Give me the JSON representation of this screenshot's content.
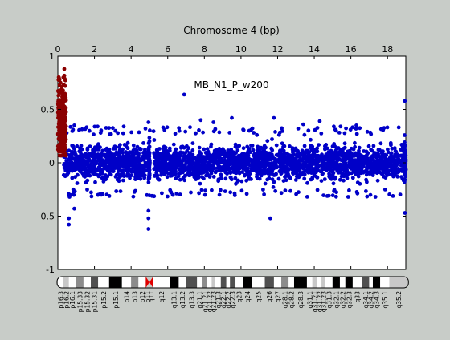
{
  "chart_data": {
    "type": "scatter",
    "title": "Chromosome 4 (bp)",
    "annotation": "MB_N1_P_w200",
    "x_ticks": [
      "0",
      "2",
      "4",
      "6",
      "8",
      "10",
      "12",
      "14",
      "16",
      "18"
    ],
    "x_tick_values": [
      0,
      2,
      4,
      6,
      8,
      10,
      12,
      14,
      16,
      18
    ],
    "xlim": [
      0,
      19
    ],
    "y_ticks": [
      "-1",
      "-0.5",
      "0",
      "0.5",
      "1"
    ],
    "y_tick_values": [
      -1,
      -0.5,
      0,
      0.5,
      1
    ],
    "ylim": [
      -1,
      1
    ],
    "grid": false,
    "series": [
      {
        "color": "#0000c8",
        "description_points": "dense band of log-ratio values around 0 spanning the whole chromosome",
        "band": [
          -0.28,
          0.28
        ],
        "outliers": [
          {
            "x": 0.9,
            "y": -0.43
          },
          {
            "x": 0.6,
            "y": -0.52
          },
          {
            "x": 0.6,
            "y": -0.58
          },
          {
            "x": 0.9,
            "y": 0.35
          },
          {
            "x": 4.95,
            "y": -0.62
          },
          {
            "x": 4.95,
            "y": -0.52
          },
          {
            "x": 4.95,
            "y": -0.45
          },
          {
            "x": 4.95,
            "y": 0.38
          },
          {
            "x": 6.9,
            "y": 0.64
          },
          {
            "x": 7.8,
            "y": 0.4
          },
          {
            "x": 11.6,
            "y": -0.52
          },
          {
            "x": 11.8,
            "y": 0.42
          },
          {
            "x": 9.5,
            "y": 0.42
          },
          {
            "x": 14.3,
            "y": 0.39
          },
          {
            "x": 18.95,
            "y": 0.58
          },
          {
            "x": 18.95,
            "y": -0.47
          },
          {
            "x": 8.5,
            "y": 0.38
          },
          {
            "x": 13.4,
            "y": 0.36
          },
          {
            "x": 3.6,
            "y": 0.34
          },
          {
            "x": 16.3,
            "y": 0.35
          }
        ]
      },
      {
        "color": "#8b0000",
        "description_points": "elevated cluster at the p-terminal end",
        "x_range": [
          0.0,
          0.45
        ],
        "y_range": [
          0.05,
          0.88
        ]
      }
    ],
    "cytobands": [
      {
        "name": "p16.3",
        "start": 0.0,
        "end": 0.3,
        "stain": "gneg"
      },
      {
        "name": "p16.2",
        "start": 0.3,
        "end": 0.6,
        "stain": "gpos25"
      },
      {
        "name": "p16.1",
        "start": 0.6,
        "end": 1.0,
        "stain": "gneg"
      },
      {
        "name": "p15.33",
        "start": 1.0,
        "end": 1.4,
        "stain": "gpos50"
      },
      {
        "name": "p15.32",
        "start": 1.4,
        "end": 1.8,
        "stain": "gneg"
      },
      {
        "name": "p15.31",
        "start": 1.8,
        "end": 2.2,
        "stain": "gpos75"
      },
      {
        "name": "p15.2",
        "start": 2.2,
        "end": 2.8,
        "stain": "gneg"
      },
      {
        "name": "p15.1",
        "start": 2.8,
        "end": 3.5,
        "stain": "gpos100"
      },
      {
        "name": "p14",
        "start": 3.5,
        "end": 4.0,
        "stain": "gneg"
      },
      {
        "name": "p13",
        "start": 4.0,
        "end": 4.4,
        "stain": "gpos50"
      },
      {
        "name": "p12",
        "start": 4.4,
        "end": 4.8,
        "stain": "gneg"
      },
      {
        "name": "p11",
        "start": 4.8,
        "end": 5.0,
        "stain": "acen"
      },
      {
        "name": "q11",
        "start": 5.0,
        "end": 5.2,
        "stain": "acen"
      },
      {
        "name": "q12",
        "start": 5.2,
        "end": 6.1,
        "stain": "gneg"
      },
      {
        "name": "q13.1",
        "start": 6.1,
        "end": 6.6,
        "stain": "gpos100"
      },
      {
        "name": "q13.2",
        "start": 6.6,
        "end": 7.0,
        "stain": "gneg"
      },
      {
        "name": "q13.3",
        "start": 7.0,
        "end": 7.6,
        "stain": "gpos75"
      },
      {
        "name": "q21.1",
        "start": 7.6,
        "end": 7.9,
        "stain": "gneg"
      },
      {
        "name": "q21.21",
        "start": 7.9,
        "end": 8.15,
        "stain": "gpos50"
      },
      {
        "name": "q21.22",
        "start": 8.15,
        "end": 8.4,
        "stain": "gneg"
      },
      {
        "name": "q21.23",
        "start": 8.4,
        "end": 8.6,
        "stain": "gpos25"
      },
      {
        "name": "q21.3",
        "start": 8.6,
        "end": 8.9,
        "stain": "gneg"
      },
      {
        "name": "q22.1",
        "start": 8.9,
        "end": 9.2,
        "stain": "gpos75"
      },
      {
        "name": "q22.2",
        "start": 9.2,
        "end": 9.4,
        "stain": "gneg"
      },
      {
        "name": "q22.3",
        "start": 9.4,
        "end": 9.7,
        "stain": "gpos75"
      },
      {
        "name": "q23",
        "start": 9.7,
        "end": 10.1,
        "stain": "gneg"
      },
      {
        "name": "q24",
        "start": 10.1,
        "end": 10.6,
        "stain": "gpos100"
      },
      {
        "name": "q25",
        "start": 10.6,
        "end": 11.3,
        "stain": "gneg"
      },
      {
        "name": "q26",
        "start": 11.3,
        "end": 11.8,
        "stain": "gpos75"
      },
      {
        "name": "q27",
        "start": 11.8,
        "end": 12.2,
        "stain": "gneg"
      },
      {
        "name": "q28.1",
        "start": 12.2,
        "end": 12.6,
        "stain": "gpos50"
      },
      {
        "name": "q28.2",
        "start": 12.6,
        "end": 12.9,
        "stain": "gneg"
      },
      {
        "name": "q28.3",
        "start": 12.9,
        "end": 13.6,
        "stain": "gpos100"
      },
      {
        "name": "q31.1",
        "start": 13.6,
        "end": 13.9,
        "stain": "gneg"
      },
      {
        "name": "q31.21",
        "start": 13.9,
        "end": 14.15,
        "stain": "gpos25"
      },
      {
        "name": "q31.22",
        "start": 14.15,
        "end": 14.4,
        "stain": "gneg"
      },
      {
        "name": "q31.23",
        "start": 14.4,
        "end": 14.6,
        "stain": "gpos25"
      },
      {
        "name": "q31.3",
        "start": 14.6,
        "end": 15.0,
        "stain": "gneg"
      },
      {
        "name": "q32.1",
        "start": 15.0,
        "end": 15.4,
        "stain": "gpos100"
      },
      {
        "name": "q32.2",
        "start": 15.4,
        "end": 15.7,
        "stain": "gneg"
      },
      {
        "name": "q32.3",
        "start": 15.7,
        "end": 16.1,
        "stain": "gpos100"
      },
      {
        "name": "q33",
        "start": 16.1,
        "end": 16.6,
        "stain": "gneg"
      },
      {
        "name": "q34.1",
        "start": 16.6,
        "end": 17.0,
        "stain": "gpos75"
      },
      {
        "name": "q34.2",
        "start": 17.0,
        "end": 17.2,
        "stain": "gneg"
      },
      {
        "name": "q34.3",
        "start": 17.2,
        "end": 17.6,
        "stain": "gpos100"
      },
      {
        "name": "q35.1",
        "start": 17.6,
        "end": 18.1,
        "stain": "gneg"
      },
      {
        "name": "q35.2",
        "start": 18.1,
        "end": 19.1,
        "stain": "gpos25"
      }
    ]
  }
}
